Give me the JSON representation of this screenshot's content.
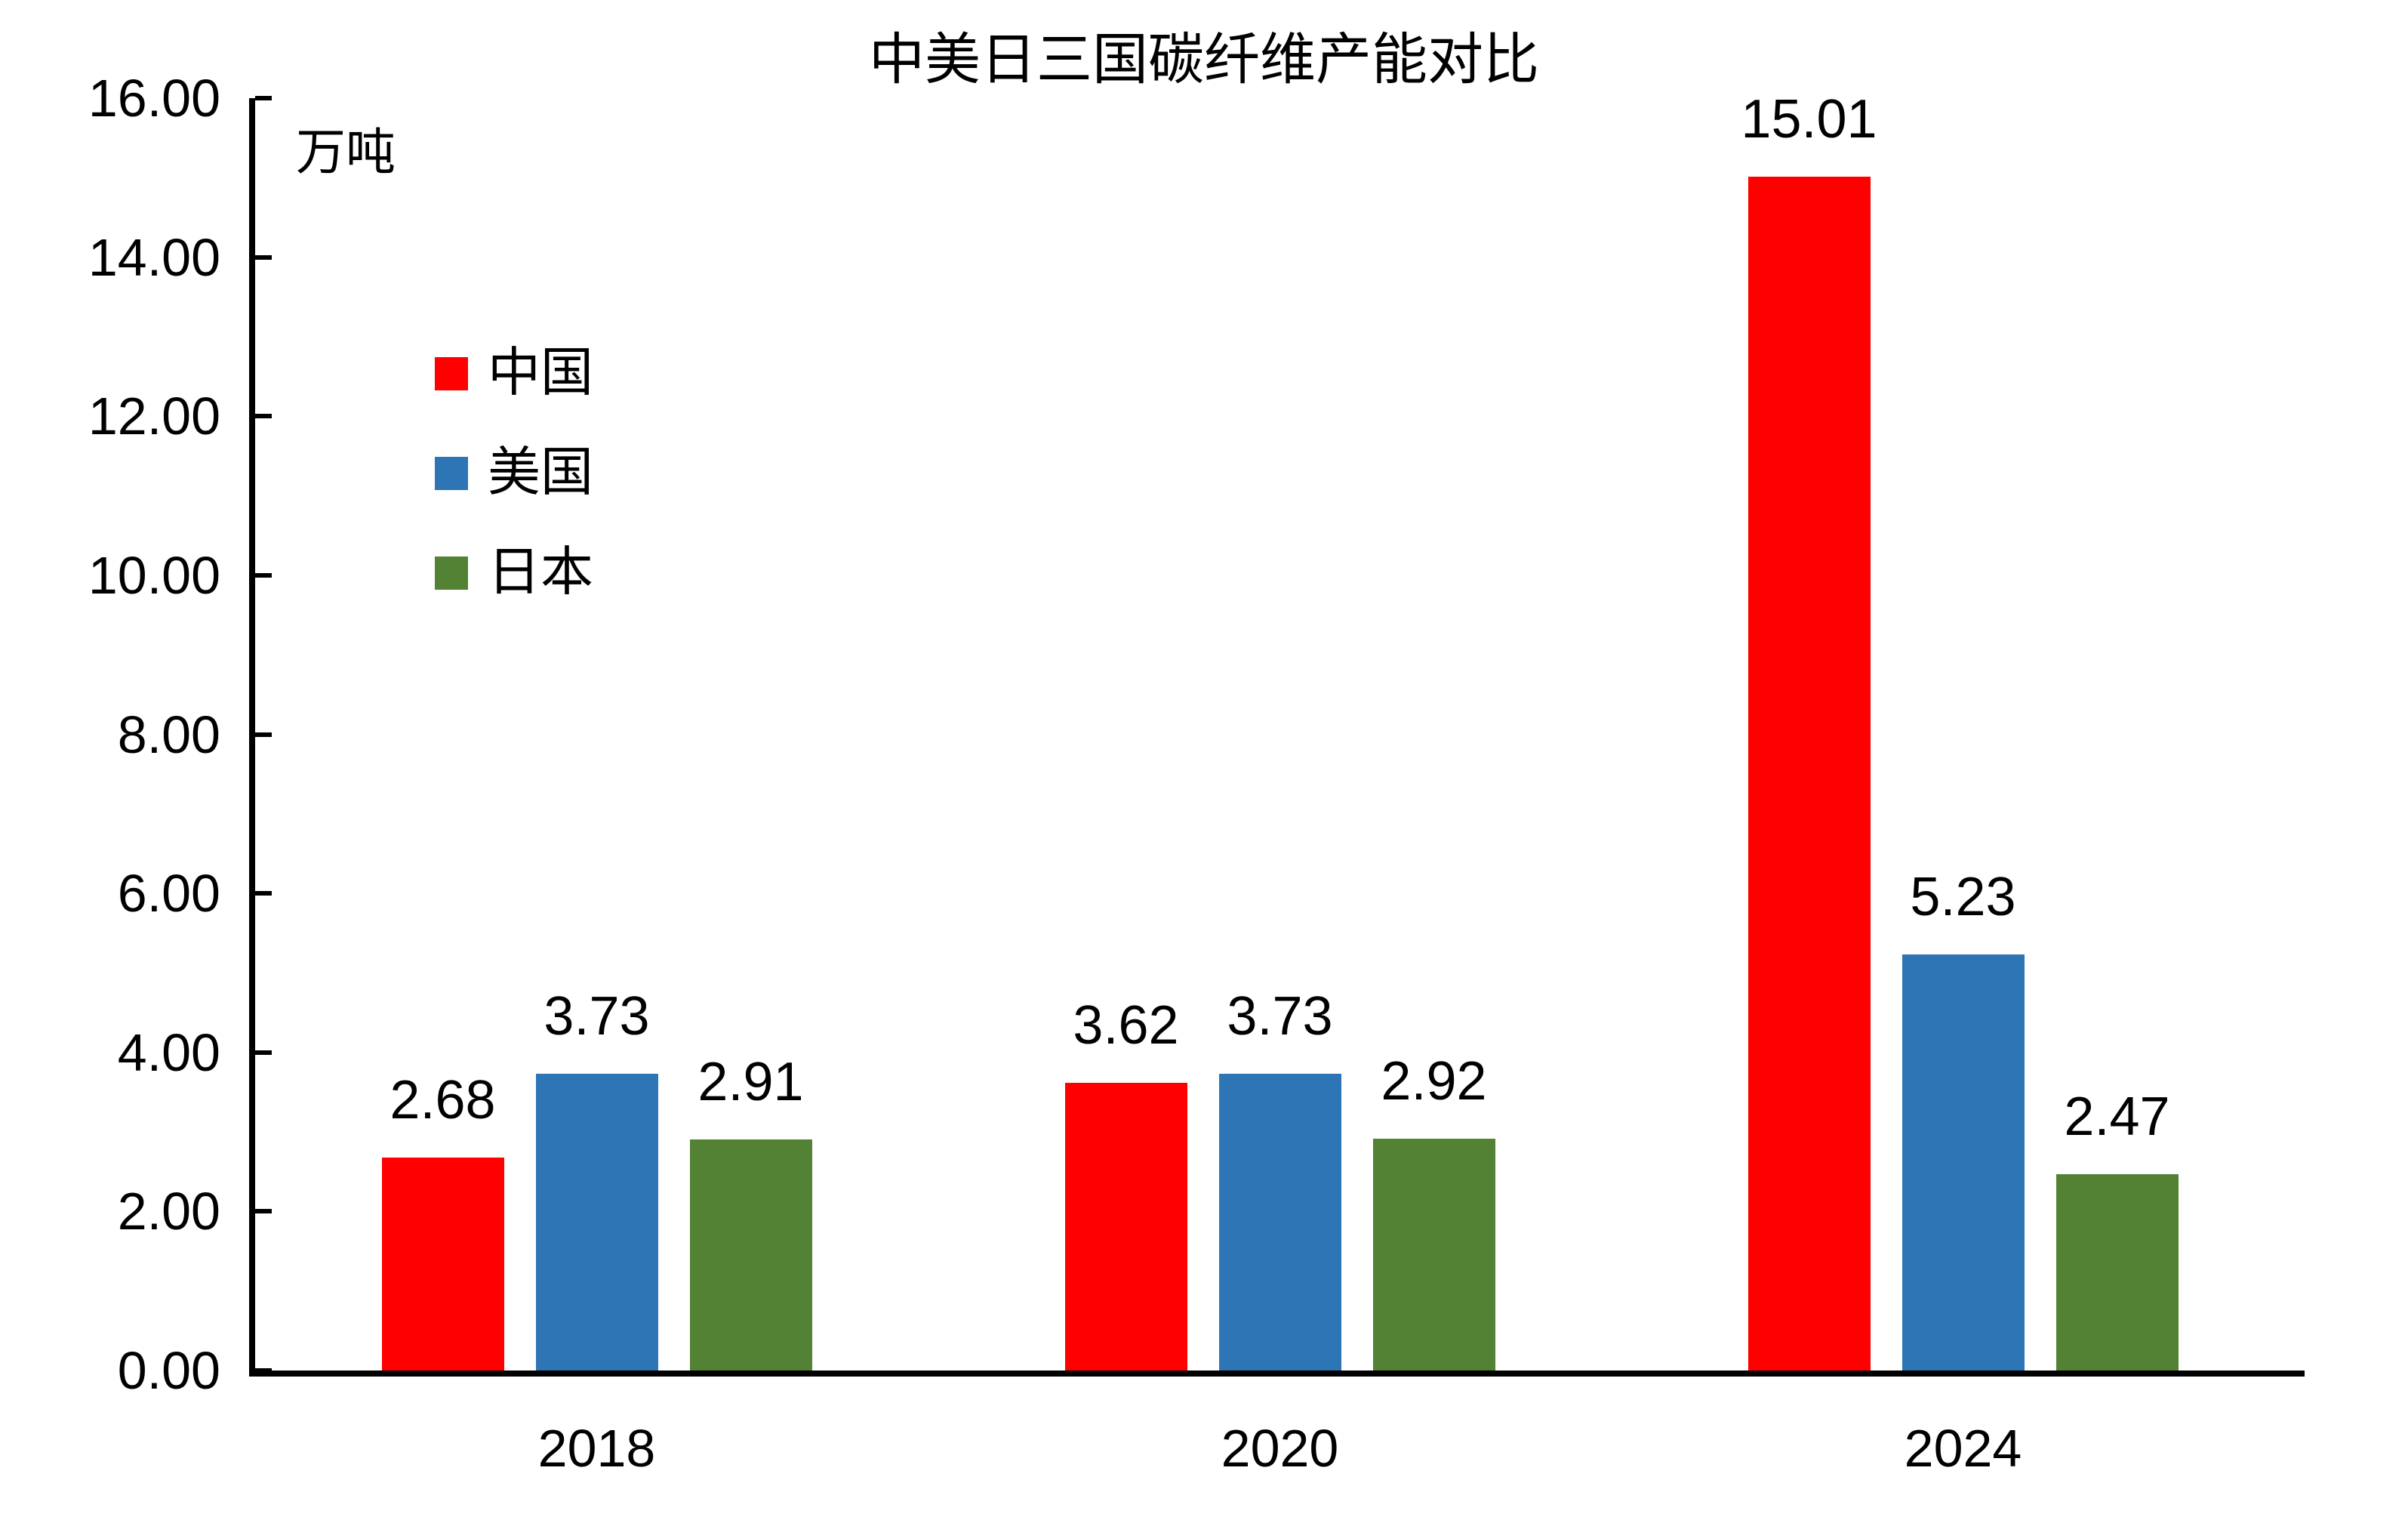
{
  "page": {
    "background": "#FFFFFF",
    "text_color": "#000000",
    "axis_color": "#000000"
  },
  "chart_data": {
    "type": "bar",
    "title": "中美日三国碳纤维产能对比",
    "y_unit_label": "万吨",
    "categories": [
      "2018",
      "2020",
      "2024"
    ],
    "series": [
      {
        "key": "china",
        "name": "中国",
        "color": "#FF0000",
        "values": [
          2.68,
          3.62,
          15.01
        ],
        "labels": [
          "2.68",
          "3.62",
          "15.01"
        ]
      },
      {
        "key": "usa",
        "name": "美国",
        "color": "#2E75B6",
        "values": [
          3.73,
          3.73,
          5.23
        ],
        "labels": [
          "3.73",
          "3.73",
          "5.23"
        ]
      },
      {
        "key": "japan",
        "name": "日本",
        "color": "#538234",
        "values": [
          2.91,
          2.92,
          2.47
        ],
        "labels": [
          "2.91",
          "2.92",
          "2.47"
        ]
      }
    ],
    "ylim": [
      0,
      16
    ],
    "ytick_step": 2,
    "ytick_labels": [
      "0.00",
      "2.00",
      "4.00",
      "6.00",
      "8.00",
      "10.00",
      "12.00",
      "14.00",
      "16.00"
    ],
    "grid": false,
    "legend_position": "inside-upper-left",
    "data_labels": "outside-end"
  }
}
